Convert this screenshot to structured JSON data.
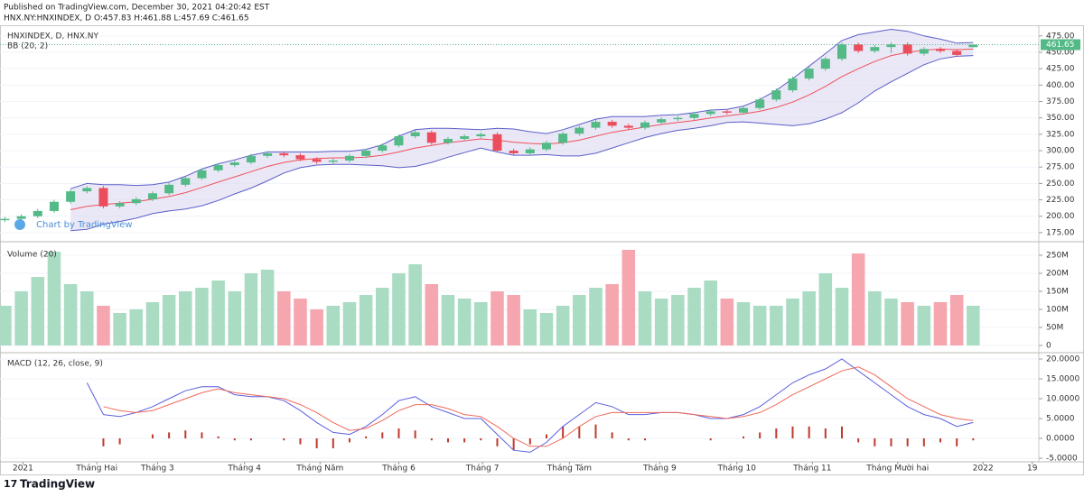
{
  "header": {
    "published": "Published on TradingView.com, December 30, 2021 04:20:42 EST",
    "symbol": "HNX.NY:HNXINDEX, D O:457.83 H:461.88 L:457.69 C:461.65"
  },
  "watermark": "Chart by TradingView",
  "footer": "TradingView",
  "chart_data": [
    {
      "type": "candlestick",
      "title": "HNXINDEX, D, HNX.NY",
      "indicator_label": "BB (20, 2)",
      "up_color": "#53b987",
      "down_color": "#eb4d5c",
      "xlim": [
        -0.3,
        63
      ],
      "ylim": [
        162.5,
        488.5
      ],
      "yticks": [
        {
          "value": 175,
          "label": "175.00"
        },
        {
          "value": 200,
          "label": "200.00"
        },
        {
          "value": 225,
          "label": "225.00"
        },
        {
          "value": 250,
          "label": "250.00"
        },
        {
          "value": 275,
          "label": "275.00"
        },
        {
          "value": 300,
          "label": "300.00"
        },
        {
          "value": 325,
          "label": "325.00"
        },
        {
          "value": 350,
          "label": "350.00"
        },
        {
          "value": 375,
          "label": "375.00"
        },
        {
          "value": 400,
          "label": "400.00"
        },
        {
          "value": 425,
          "label": "425.00"
        },
        {
          "value": 450,
          "label": "450.00"
        },
        {
          "value": 475,
          "label": "475.00"
        }
      ],
      "grid": true,
      "open": [
        194,
        196,
        200,
        208,
        222,
        238,
        243,
        215,
        220,
        226,
        235,
        248,
        258,
        270,
        278,
        282,
        292,
        296,
        293,
        287,
        283,
        285,
        292,
        300,
        308,
        322,
        328,
        312,
        318,
        322,
        325,
        300,
        296,
        302,
        312,
        326,
        335,
        344,
        338,
        335,
        343,
        348,
        350,
        356,
        360,
        358,
        365,
        378,
        392,
        410,
        425,
        440,
        462,
        452,
        458,
        462,
        448,
        455,
        452,
        457.83
      ],
      "high": [
        199,
        203,
        211,
        225,
        241,
        246,
        246,
        223,
        229,
        238,
        251,
        261,
        273,
        281,
        285,
        295,
        299,
        299,
        296,
        290,
        288,
        295,
        303,
        311,
        325,
        331,
        331,
        321,
        325,
        328,
        328,
        303,
        305,
        315,
        329,
        338,
        347,
        347,
        341,
        346,
        351,
        353,
        359,
        363,
        363,
        368,
        381,
        395,
        413,
        428,
        443,
        465,
        465,
        461,
        465,
        465,
        458,
        458,
        455,
        461.88
      ],
      "low": [
        191,
        193,
        197,
        205,
        219,
        235,
        212,
        212,
        217,
        223,
        232,
        245,
        255,
        267,
        275,
        279,
        289,
        290,
        284,
        280,
        280,
        282,
        289,
        297,
        305,
        319,
        309,
        309,
        315,
        319,
        297,
        293,
        293,
        299,
        309,
        323,
        332,
        335,
        332,
        332,
        340,
        345,
        347,
        353,
        355,
        355,
        362,
        375,
        389,
        407,
        422,
        437,
        449,
        449,
        449,
        445,
        445,
        449,
        443,
        457.69
      ],
      "close": [
        196,
        200,
        208,
        222,
        238,
        243,
        215,
        220,
        226,
        235,
        248,
        258,
        270,
        278,
        282,
        292,
        296,
        293,
        287,
        283,
        285,
        292,
        300,
        308,
        322,
        328,
        312,
        318,
        322,
        325,
        300,
        296,
        302,
        312,
        326,
        335,
        344,
        338,
        335,
        343,
        348,
        350,
        356,
        360,
        358,
        365,
        378,
        392,
        410,
        425,
        440,
        462,
        452,
        458,
        462,
        448,
        455,
        452,
        446,
        461.65
      ],
      "bands": {
        "basis_color": "#f0505c",
        "band_color": "#5b5fc7",
        "fill_color": "#dcd8f0",
        "basis": [
          null,
          null,
          null,
          null,
          210,
          215,
          218,
          220,
          222,
          226,
          230,
          236,
          244,
          252,
          260,
          268,
          276,
          282,
          286,
          288,
          289,
          289,
          290,
          293,
          298,
          304,
          308,
          312,
          315,
          318,
          316,
          313,
          311,
          310,
          312,
          316,
          322,
          328,
          332,
          336,
          340,
          343,
          346,
          350,
          353,
          356,
          360,
          366,
          374,
          385,
          398,
          413,
          425,
          436,
          445,
          450,
          453,
          455,
          454,
          455
        ],
        "upper": [
          null,
          null,
          null,
          null,
          242,
          250,
          248,
          248,
          247,
          248,
          252,
          261,
          272,
          280,
          286,
          293,
          298,
          298,
          298,
          298,
          299,
          299,
          302,
          309,
          322,
          332,
          334,
          334,
          333,
          332,
          334,
          333,
          329,
          326,
          332,
          340,
          348,
          352,
          352,
          352,
          354,
          355,
          358,
          362,
          363,
          368,
          378,
          392,
          410,
          429,
          448,
          468,
          477,
          481,
          485,
          482,
          475,
          470,
          464,
          465
        ],
        "lower": [
          null,
          null,
          null,
          null,
          178,
          180,
          188,
          192,
          197,
          204,
          208,
          211,
          216,
          224,
          234,
          243,
          254,
          266,
          274,
          278,
          279,
          279,
          278,
          277,
          274,
          276,
          282,
          290,
          297,
          304,
          298,
          293,
          293,
          294,
          292,
          292,
          296,
          304,
          312,
          320,
          326,
          331,
          334,
          338,
          343,
          344,
          342,
          340,
          338,
          341,
          348,
          358,
          373,
          391,
          405,
          418,
          431,
          440,
          444,
          445
        ]
      }
    },
    {
      "type": "bar",
      "title": "Volume (20)",
      "up_color": "#a9dcc3",
      "down_color": "#f5a6ae",
      "xlim": [
        -0.3,
        63
      ],
      "ylim": [
        -17500000,
        282500000
      ],
      "yticks": [
        0,
        {
          "value": 50000000,
          "label": "50M"
        },
        {
          "value": 100000000,
          "label": "100M"
        },
        {
          "value": 150000000,
          "label": "150M"
        },
        {
          "value": 200000000,
          "label": "200M"
        },
        {
          "value": 250000000,
          "label": "250M"
        }
      ],
      "values": [
        110000000.0,
        150000000.0,
        190000000.0,
        260000000.0,
        170000000.0,
        150000000.0,
        110000000.0,
        90000000.0,
        100000000.0,
        120000000.0,
        140000000.0,
        150000000.0,
        160000000.0,
        180000000.0,
        150000000.0,
        200000000.0,
        210000000.0,
        150000000.0,
        130000000.0,
        100000000.0,
        110000000.0,
        120000000.0,
        140000000.0,
        160000000.0,
        200000000.0,
        225000000.0,
        170000000.0,
        140000000.0,
        130000000.0,
        120000000.0,
        150000000.0,
        140000000.0,
        100000000.0,
        90000000.0,
        110000000.0,
        140000000.0,
        160000000.0,
        170000000.0,
        265000000.0,
        150000000.0,
        130000000.0,
        140000000.0,
        160000000.0,
        180000000.0,
        130000000.0,
        120000000.0,
        110000000.0,
        110000000.0,
        130000000.0,
        150000000.0,
        200000000.0,
        160000000.0,
        255000000.0,
        150000000.0,
        130000000.0,
        120000000.0,
        110000000.0,
        120000000.0,
        140000000.0,
        110000000.0
      ]
    },
    {
      "type": "line",
      "title": "MACD (12, 26, close, 9)",
      "xlim": [
        -0.3,
        63
      ],
      "ylim": [
        -5.91,
        21.14
      ],
      "yticks": [
        {
          "value": -5,
          "label": "-5.0000"
        },
        {
          "value": 0,
          "label": "0.0000"
        },
        {
          "value": 5,
          "label": "5.0000"
        },
        {
          "value": 10,
          "label": "10.0000"
        },
        {
          "value": 15,
          "label": "15.0000"
        },
        {
          "value": 20,
          "label": "20.0000"
        }
      ],
      "xticks": [
        {
          "value": 1.1,
          "label": "2021"
        },
        {
          "value": 5.6,
          "label": "Tháng Hai"
        },
        {
          "value": 9.3,
          "label": "Tháng 3"
        },
        {
          "value": 14.6,
          "label": "Tháng 4"
        },
        {
          "value": 19.2,
          "label": "Tháng Năm"
        },
        {
          "value": 24,
          "label": "Tháng 6"
        },
        {
          "value": 29.1,
          "label": "Tháng 7"
        },
        {
          "value": 34.4,
          "label": "Tháng Tám"
        },
        {
          "value": 39.9,
          "label": "Tháng 9"
        },
        {
          "value": 44.6,
          "label": "Tháng 10"
        },
        {
          "value": 49.2,
          "label": "Tháng 11"
        },
        {
          "value": 54.4,
          "label": "Tháng Mười hai"
        },
        {
          "value": 59.6,
          "label": "2022"
        },
        {
          "value": 62.6,
          "label": "19"
        }
      ],
      "series": [
        {
          "color": "#5b5fe0",
          "values": [
            null,
            null,
            null,
            null,
            null,
            14,
            6,
            5.5,
            6.5,
            8,
            10,
            12,
            13,
            13,
            11,
            10.5,
            10.5,
            9.5,
            7,
            4,
            1.5,
            1,
            3,
            6,
            9.5,
            10.5,
            8,
            6.5,
            5,
            5,
            1,
            -3,
            -3.5,
            -1,
            3,
            6,
            9,
            8,
            6,
            6,
            6.5,
            6.5,
            6,
            5,
            5,
            6,
            8,
            11,
            14,
            16,
            17.5,
            20,
            17,
            14,
            11,
            8,
            6,
            5,
            3,
            4
          ]
        },
        {
          "color": "#ef6a5a",
          "values": [
            null,
            null,
            null,
            null,
            null,
            null,
            8,
            7,
            6.5,
            7,
            8.5,
            10,
            11.5,
            12.5,
            11.5,
            11,
            10.5,
            10,
            8.5,
            6.5,
            4,
            2,
            2.5,
            4.5,
            7,
            8.5,
            8.5,
            7.5,
            6,
            5.5,
            3,
            0,
            -2,
            -2,
            0,
            3,
            5.5,
            6.5,
            6.5,
            6.5,
            6.5,
            6.5,
            6,
            5.5,
            5,
            5.5,
            6.5,
            8.5,
            11,
            13,
            15,
            17,
            18,
            16,
            13,
            10,
            8,
            6,
            5,
            4.5
          ]
        }
      ],
      "histogram": {
        "color": "#c0392b",
        "values": [
          null,
          null,
          null,
          null,
          null,
          null,
          -2,
          -1.5,
          0,
          1,
          1.5,
          2,
          1.5,
          0.5,
          -0.5,
          -0.5,
          0,
          -0.5,
          -1.5,
          -2.5,
          -2.5,
          -1,
          0.5,
          1.5,
          2.5,
          2,
          -0.5,
          -1,
          -1,
          -0.5,
          -2,
          -3,
          -1.5,
          1,
          3,
          3,
          3.5,
          1.5,
          -0.5,
          -0.5,
          0,
          0,
          0,
          -0.5,
          0,
          0.5,
          1.5,
          2.5,
          3,
          3,
          2.5,
          3,
          -1,
          -2,
          -2,
          -2,
          -2,
          -1,
          -2,
          -0.5
        ]
      }
    }
  ]
}
